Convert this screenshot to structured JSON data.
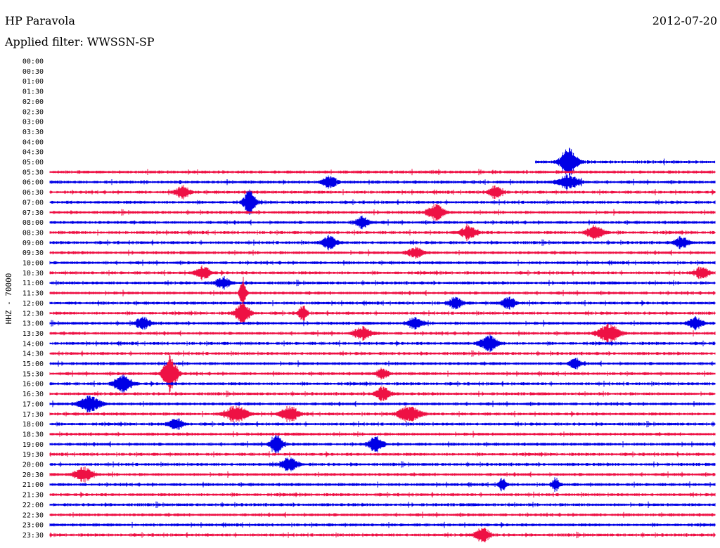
{
  "header": {
    "station": "HP Paravola",
    "filter": "Applied filter: WWSSN-SP",
    "date": "2012-07-20"
  },
  "chart_data": {
    "type": "line",
    "title": "HP Paravola",
    "subtitle": "Applied filter: WWSSN-SP",
    "ylabel": "HHZ - 70000",
    "xlabel": "",
    "tick_labels": [
      "00:00",
      "00:30",
      "01:00",
      "01:30",
      "02:00",
      "02:30",
      "03:00",
      "03:30",
      "04:00",
      "04:30",
      "05:00",
      "05:30",
      "06:00",
      "06:30",
      "07:00",
      "07:30",
      "08:00",
      "08:30",
      "09:00",
      "09:30",
      "10:00",
      "10:30",
      "11:00",
      "11:30",
      "12:00",
      "12:30",
      "13:00",
      "13:30",
      "14:00",
      "14:30",
      "15:00",
      "15:30",
      "16:00",
      "16:30",
      "17:00",
      "17:30",
      "18:00",
      "18:30",
      "19:00",
      "19:30",
      "20:00",
      "20:30",
      "21:00",
      "21:30",
      "22:00",
      "22:30",
      "23:00",
      "23:30"
    ],
    "first_trace_row": "05:00",
    "first_trace_start_fraction": 0.73,
    "colors": [
      "#0000e6",
      "#ee1144"
    ],
    "events": [
      {
        "row": "05:00",
        "x": 0.78,
        "amp": 3.2,
        "width": 0.012
      },
      {
        "row": "06:00",
        "x": 0.42,
        "amp": 1.3,
        "width": 0.01
      },
      {
        "row": "06:00",
        "x": 0.78,
        "amp": 1.5,
        "width": 0.015
      },
      {
        "row": "06:30",
        "x": 0.2,
        "amp": 1.4,
        "width": 0.01
      },
      {
        "row": "06:30",
        "x": 0.67,
        "amp": 1.4,
        "width": 0.01
      },
      {
        "row": "07:00",
        "x": 0.3,
        "amp": 3.0,
        "width": 0.008
      },
      {
        "row": "07:30",
        "x": 0.58,
        "amp": 1.7,
        "width": 0.012
      },
      {
        "row": "08:00",
        "x": 0.47,
        "amp": 1.3,
        "width": 0.01
      },
      {
        "row": "08:30",
        "x": 0.63,
        "amp": 1.5,
        "width": 0.012
      },
      {
        "row": "08:30",
        "x": 0.82,
        "amp": 1.7,
        "width": 0.012
      },
      {
        "row": "09:00",
        "x": 0.42,
        "amp": 1.5,
        "width": 0.01
      },
      {
        "row": "09:00",
        "x": 0.95,
        "amp": 1.3,
        "width": 0.01
      },
      {
        "row": "09:30",
        "x": 0.55,
        "amp": 1.1,
        "width": 0.012
      },
      {
        "row": "10:30",
        "x": 0.23,
        "amp": 1.5,
        "width": 0.01
      },
      {
        "row": "10:30",
        "x": 0.98,
        "amp": 1.4,
        "width": 0.01
      },
      {
        "row": "11:00",
        "x": 0.26,
        "amp": 1.3,
        "width": 0.01
      },
      {
        "row": "11:30",
        "x": 0.29,
        "amp": 4.0,
        "width": 0.004
      },
      {
        "row": "12:00",
        "x": 0.61,
        "amp": 1.2,
        "width": 0.01
      },
      {
        "row": "12:00",
        "x": 0.69,
        "amp": 1.3,
        "width": 0.01
      },
      {
        "row": "12:30",
        "x": 0.29,
        "amp": 2.5,
        "width": 0.01
      },
      {
        "row": "12:30",
        "x": 0.38,
        "amp": 1.6,
        "width": 0.006
      },
      {
        "row": "13:00",
        "x": 0.14,
        "amp": 1.4,
        "width": 0.01
      },
      {
        "row": "13:00",
        "x": 0.55,
        "amp": 1.3,
        "width": 0.01
      },
      {
        "row": "13:00",
        "x": 0.97,
        "amp": 1.4,
        "width": 0.01
      },
      {
        "row": "13:30",
        "x": 0.47,
        "amp": 1.4,
        "width": 0.012
      },
      {
        "row": "13:30",
        "x": 0.84,
        "amp": 2.0,
        "width": 0.015
      },
      {
        "row": "14:00",
        "x": 0.66,
        "amp": 1.8,
        "width": 0.012
      },
      {
        "row": "15:00",
        "x": 0.79,
        "amp": 1.2,
        "width": 0.008
      },
      {
        "row": "15:30",
        "x": 0.18,
        "amp": 4.5,
        "width": 0.01
      },
      {
        "row": "15:30",
        "x": 0.5,
        "amp": 1.2,
        "width": 0.008
      },
      {
        "row": "16:00",
        "x": 0.11,
        "amp": 2.0,
        "width": 0.012
      },
      {
        "row": "16:30",
        "x": 0.5,
        "amp": 1.6,
        "width": 0.01
      },
      {
        "row": "17:00",
        "x": 0.06,
        "amp": 1.8,
        "width": 0.015
      },
      {
        "row": "17:30",
        "x": 0.28,
        "amp": 2.0,
        "width": 0.015
      },
      {
        "row": "17:30",
        "x": 0.36,
        "amp": 1.7,
        "width": 0.012
      },
      {
        "row": "17:30",
        "x": 0.54,
        "amp": 1.9,
        "width": 0.015
      },
      {
        "row": "18:00",
        "x": 0.19,
        "amp": 1.3,
        "width": 0.01
      },
      {
        "row": "19:00",
        "x": 0.34,
        "amp": 2.6,
        "width": 0.008
      },
      {
        "row": "19:00",
        "x": 0.49,
        "amp": 1.7,
        "width": 0.01
      },
      {
        "row": "20:00",
        "x": 0.36,
        "amp": 1.5,
        "width": 0.012
      },
      {
        "row": "20:30",
        "x": 0.05,
        "amp": 1.7,
        "width": 0.012
      },
      {
        "row": "21:00",
        "x": 0.68,
        "amp": 1.5,
        "width": 0.005
      },
      {
        "row": "21:00",
        "x": 0.76,
        "amp": 1.5,
        "width": 0.005
      },
      {
        "row": "23:30",
        "x": 0.65,
        "amp": 1.8,
        "width": 0.01
      }
    ]
  }
}
